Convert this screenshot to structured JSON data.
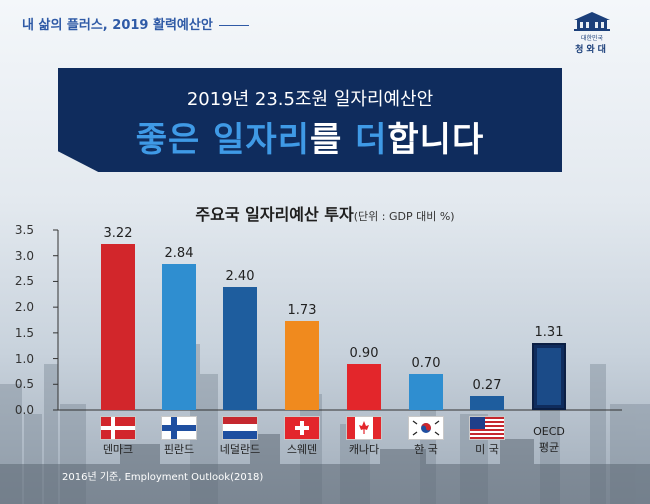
{
  "header": {
    "tagline": "내 삶의 플러스, 2019 활력예산안",
    "logo_small": "대한민국",
    "logo_text": "청와대"
  },
  "banner": {
    "subtitle": "2019년 23.5조원 일자리예산안",
    "title_a": "좋은",
    "title_b": "일자리",
    "title_c": "를",
    "title_d": "더",
    "title_e": "합니다"
  },
  "source_note": "2016년 기준, Employment Outlook(2018)",
  "chart_data": {
    "type": "bar",
    "title": "주요국 일자리예산 투자",
    "unit_label": "(단위 : GDP 대비 %)",
    "categories": [
      "덴마크",
      "핀란드",
      "네덜란드",
      "스웨덴",
      "캐나다",
      "한 국",
      "미 국",
      "OECD 평균"
    ],
    "values": [
      3.22,
      2.84,
      2.4,
      1.73,
      0.9,
      0.7,
      0.27,
      1.31
    ],
    "value_labels": [
      "3.22",
      "2.84",
      "2.40",
      "1.73",
      "0.90",
      "0.70",
      "0.27",
      "1.31"
    ],
    "colors": [
      "#d2262b",
      "#2f8ed0",
      "#1e5d9e",
      "#f08a1e",
      "#e3262b",
      "#2f8ed0",
      "#1e5d9e",
      "#1b4b88"
    ],
    "flags": [
      "denmark-flag",
      "finland-flag",
      "netherlands-flag",
      "switzerland-flag",
      "canada-flag",
      "korea-flag",
      "usa-flag",
      "none"
    ],
    "ylim": [
      0,
      3.5
    ],
    "yticks": [
      "0.0",
      "0.5",
      "1.0",
      "1.5",
      "2.0",
      "2.5",
      "3.0",
      "3.5"
    ],
    "oecd_label_1": "OECD",
    "oecd_label_2": "평균"
  }
}
